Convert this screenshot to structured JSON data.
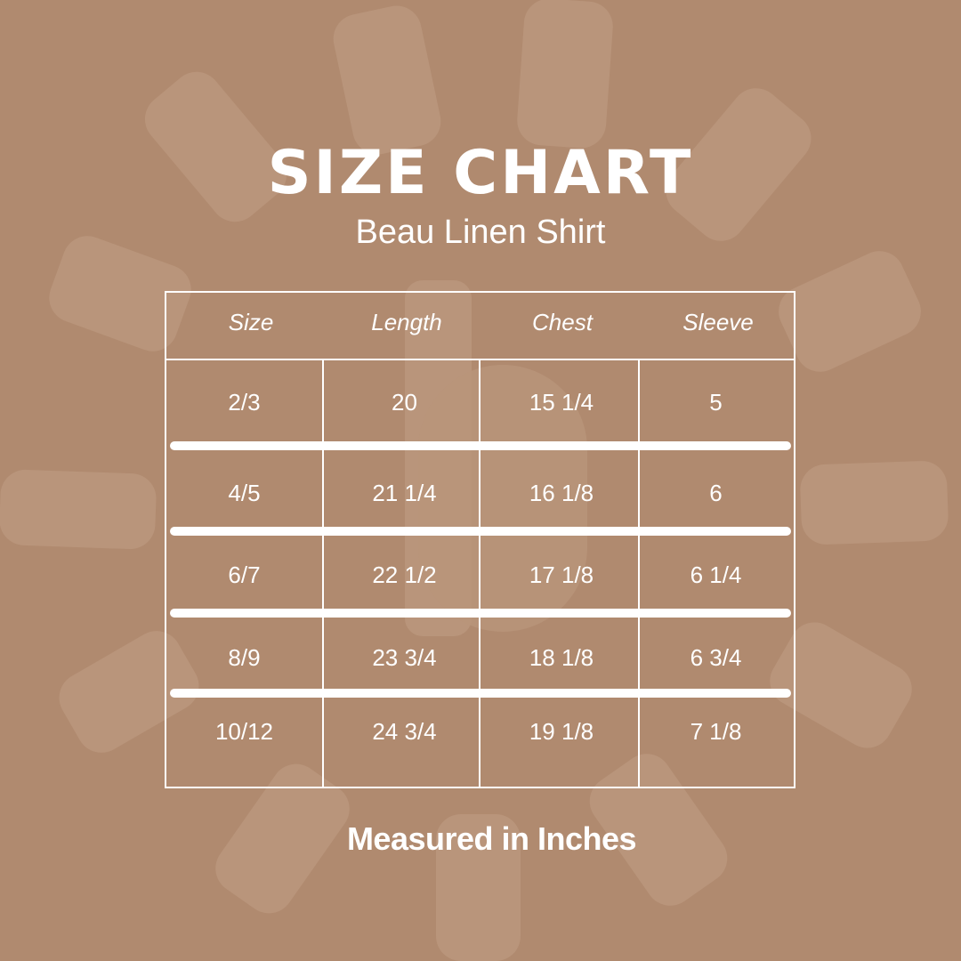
{
  "title": "SIZE CHART",
  "subtitle": "Beau Linen Shirt",
  "colors": {
    "background": "#b08a6f",
    "shapes": "#b9957b",
    "text": "#ffffff"
  },
  "table": {
    "headers": [
      "Size",
      "Length",
      "Chest",
      "Sleeve"
    ],
    "rows": [
      [
        "2/3",
        "20",
        "15 1/4",
        "5"
      ],
      [
        "4/5",
        "21 1/4",
        "16 1/8",
        "6"
      ],
      [
        "6/7",
        "22 1/2",
        "17 1/8",
        "6 1/4"
      ],
      [
        "8/9",
        "23 3/4",
        "18 1/8",
        "6 3/4"
      ],
      [
        "10/12",
        "24 3/4",
        "19 1/8",
        "7 1/8"
      ]
    ]
  },
  "footer": "Measured in Inches"
}
